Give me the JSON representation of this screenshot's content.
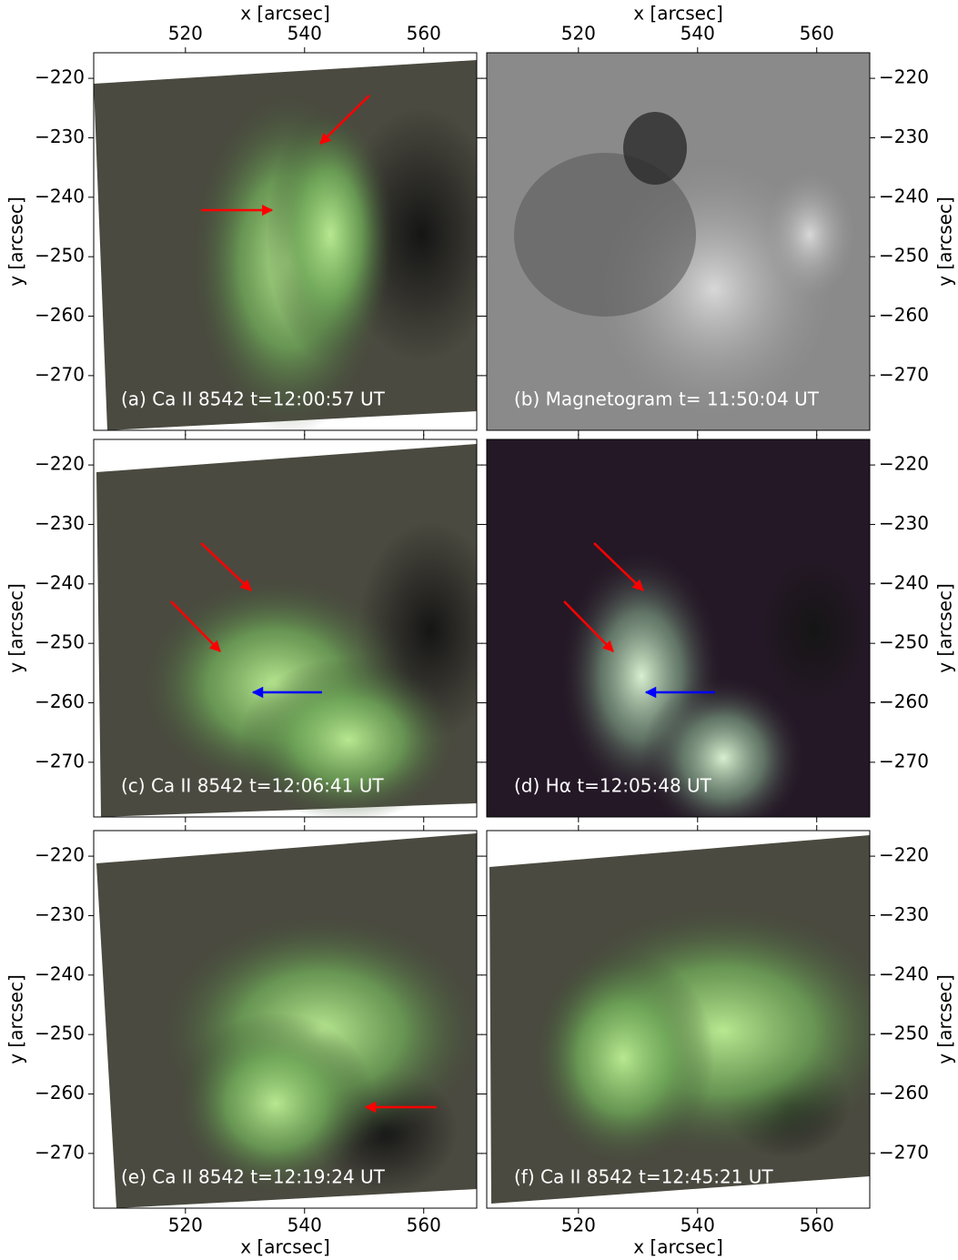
{
  "chart_data": [
    {
      "type": "image",
      "label": "(a) Ca II 8542 t=12:00:57 UT",
      "xlabel": "x [arcsec]",
      "ylabel": "y [arcsec]",
      "xlim": [
        504.6,
        568.9
      ],
      "ylim": [
        -279.2,
        -215.7
      ],
      "xticks": [
        520,
        540,
        560
      ],
      "yticks": [
        {
          "value": -220,
          "label": "−220"
        },
        {
          "value": -230,
          "label": "−230"
        },
        {
          "value": -240,
          "label": "−240"
        },
        {
          "value": -250,
          "label": "−250"
        },
        {
          "value": -260,
          "label": "−260"
        },
        {
          "value": -270,
          "label": "−270"
        }
      ]
    },
    {
      "type": "image",
      "label": "(b) Magnetogram t= 11:50:04 UT",
      "xlabel": "x [arcsec]",
      "ylabel": "y [arcsec]",
      "xlim": [
        504.6,
        568.9
      ],
      "ylim": [
        -279.2,
        -215.7
      ],
      "xticks": [
        520,
        540,
        560
      ],
      "yticks": [
        {
          "value": -220,
          "label": "−220"
        },
        {
          "value": -230,
          "label": "−230"
        },
        {
          "value": -240,
          "label": "−240"
        },
        {
          "value": -250,
          "label": "−250"
        },
        {
          "value": -260,
          "label": "−260"
        },
        {
          "value": -270,
          "label": "−270"
        }
      ]
    },
    {
      "type": "image",
      "label": "(c) Ca II 8542 t=12:06:41 UT",
      "ylabel": "y [arcsec]",
      "xlim": [
        504.6,
        568.9
      ],
      "ylim": [
        -279.2,
        -215.7
      ],
      "xticks": [
        520,
        540,
        560
      ],
      "yticks": [
        {
          "value": -220,
          "label": "−220"
        },
        {
          "value": -230,
          "label": "−230"
        },
        {
          "value": -240,
          "label": "−240"
        },
        {
          "value": -250,
          "label": "−250"
        },
        {
          "value": -260,
          "label": "−260"
        },
        {
          "value": -270,
          "label": "−270"
        }
      ]
    },
    {
      "type": "image",
      "label": "(d) Hα t=12:05:48 UT",
      "ylabel": "y [arcsec]",
      "xlim": [
        504.6,
        568.9
      ],
      "ylim": [
        -279.2,
        -215.7
      ],
      "xticks": [
        520,
        540,
        560
      ],
      "yticks": [
        {
          "value": -220,
          "label": "−220"
        },
        {
          "value": -230,
          "label": "−230"
        },
        {
          "value": -240,
          "label": "−240"
        },
        {
          "value": -250,
          "label": "−250"
        },
        {
          "value": -260,
          "label": "−260"
        },
        {
          "value": -270,
          "label": "−270"
        }
      ]
    },
    {
      "type": "image",
      "label": "(e) Ca II 8542 t=12:19:24 UT",
      "xlabel": "x [arcsec]",
      "ylabel": "y [arcsec]",
      "xlim": [
        504.6,
        568.9
      ],
      "ylim": [
        -279.2,
        -215.7
      ],
      "xticks": [
        520,
        540,
        560
      ],
      "yticks": [
        {
          "value": -220,
          "label": "−220"
        },
        {
          "value": -230,
          "label": "−230"
        },
        {
          "value": -240,
          "label": "−240"
        },
        {
          "value": -250,
          "label": "−250"
        },
        {
          "value": -260,
          "label": "−260"
        },
        {
          "value": -270,
          "label": "−270"
        }
      ]
    },
    {
      "type": "image",
      "label": "(f) Ca II 8542 t=12:45:21 UT",
      "xlabel": "x [arcsec]",
      "ylabel": "y [arcsec]",
      "xlim": [
        504.6,
        568.9
      ],
      "ylim": [
        -279.2,
        -215.7
      ],
      "xticks": [
        520,
        540,
        560
      ],
      "yticks": [
        {
          "value": -220,
          "label": "−220"
        },
        {
          "value": -230,
          "label": "−230"
        },
        {
          "value": -240,
          "label": "−240"
        },
        {
          "value": -250,
          "label": "−250"
        },
        {
          "value": -260,
          "label": "−260"
        },
        {
          "value": -270,
          "label": "−270"
        }
      ]
    }
  ]
}
